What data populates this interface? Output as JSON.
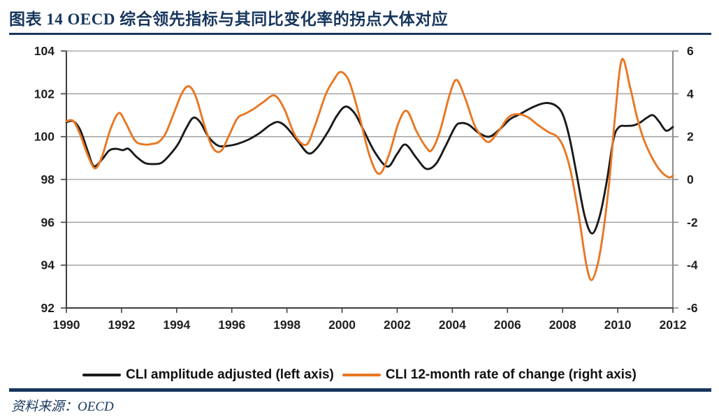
{
  "page": {
    "title": "图表 14  OECD 综合领先指标与其同比变化率的拐点大体对应",
    "source_label": "资料来源：",
    "source_value": "OECD"
  },
  "colors": {
    "navy": "#17365D",
    "black_series": "#1a1a1a",
    "orange_series": "#E87722",
    "gridline": "#9c9c9c",
    "axis": "#3f3f3f",
    "axis_right": "#8c8c8c",
    "tick_label": "#1f1f1f"
  },
  "legend": {
    "items": [
      {
        "label": "CLI amplitude adjusted (left axis)",
        "color": "#1a1a1a"
      },
      {
        "label": "CLI 12-month rate of change (right axis)",
        "color": "#E87722"
      }
    ]
  },
  "chart_data": {
    "type": "line",
    "title": "OECD 综合领先指标与其同比变化率的拐点大体对应",
    "x_axis": {
      "range": [
        1990,
        2012
      ],
      "ticks": [
        1990,
        1992,
        1994,
        1996,
        1998,
        2000,
        2002,
        2004,
        2006,
        2008,
        2010,
        2012
      ]
    },
    "left_axis": {
      "label": "CLI amplitude adjusted",
      "range": [
        92,
        104
      ],
      "ticks": [
        92,
        94,
        96,
        98,
        100,
        102,
        104
      ]
    },
    "right_axis": {
      "label": "CLI 12-month rate of change",
      "range": [
        -6,
        6
      ],
      "ticks": [
        -6,
        -4,
        -2,
        0,
        2,
        4,
        6
      ]
    },
    "grid": true,
    "legend_position": "bottom",
    "series": [
      {
        "name": "CLI amplitude adjusted (left axis)",
        "axis": "left",
        "color": "#1a1a1a",
        "points": [
          [
            1990.0,
            100.68
          ],
          [
            1990.25,
            100.72
          ],
          [
            1990.5,
            100.32
          ],
          [
            1990.78,
            99.3
          ],
          [
            1991.0,
            98.62
          ],
          [
            1991.3,
            98.95
          ],
          [
            1991.55,
            99.35
          ],
          [
            1991.8,
            99.43
          ],
          [
            1992.05,
            99.37
          ],
          [
            1992.25,
            99.43
          ],
          [
            1992.55,
            99.05
          ],
          [
            1992.85,
            98.77
          ],
          [
            1993.15,
            98.72
          ],
          [
            1993.45,
            98.78
          ],
          [
            1993.75,
            99.15
          ],
          [
            1994.05,
            99.65
          ],
          [
            1994.35,
            100.4
          ],
          [
            1994.6,
            100.88
          ],
          [
            1994.85,
            100.68
          ],
          [
            1995.15,
            100.0
          ],
          [
            1995.5,
            99.58
          ],
          [
            1995.85,
            99.57
          ],
          [
            1996.2,
            99.66
          ],
          [
            1996.6,
            99.86
          ],
          [
            1997.0,
            100.16
          ],
          [
            1997.4,
            100.55
          ],
          [
            1997.7,
            100.68
          ],
          [
            1998.0,
            100.42
          ],
          [
            1998.4,
            99.78
          ],
          [
            1998.78,
            99.22
          ],
          [
            1999.1,
            99.48
          ],
          [
            1999.5,
            100.25
          ],
          [
            1999.8,
            100.95
          ],
          [
            2000.12,
            101.4
          ],
          [
            2000.45,
            101.1
          ],
          [
            2000.8,
            100.25
          ],
          [
            2001.2,
            99.25
          ],
          [
            2001.65,
            98.6
          ],
          [
            2002.0,
            99.2
          ],
          [
            2002.3,
            99.63
          ],
          [
            2002.7,
            99.0
          ],
          [
            2003.05,
            98.5
          ],
          [
            2003.4,
            98.72
          ],
          [
            2003.75,
            99.55
          ],
          [
            2004.1,
            100.45
          ],
          [
            2004.3,
            100.63
          ],
          [
            2004.6,
            100.55
          ],
          [
            2004.95,
            100.18
          ],
          [
            2005.35,
            100.0
          ],
          [
            2005.75,
            100.38
          ],
          [
            2006.1,
            100.82
          ],
          [
            2006.45,
            101.05
          ],
          [
            2006.8,
            101.3
          ],
          [
            2007.15,
            101.5
          ],
          [
            2007.45,
            101.57
          ],
          [
            2007.75,
            101.45
          ],
          [
            2008.0,
            101.05
          ],
          [
            2008.25,
            99.95
          ],
          [
            2008.5,
            98.3
          ],
          [
            2008.8,
            96.3
          ],
          [
            2009.07,
            95.48
          ],
          [
            2009.35,
            96.3
          ],
          [
            2009.6,
            97.9
          ],
          [
            2009.85,
            99.9
          ],
          [
            2010.05,
            100.45
          ],
          [
            2010.3,
            100.5
          ],
          [
            2010.55,
            100.52
          ],
          [
            2010.8,
            100.65
          ],
          [
            2011.05,
            100.88
          ],
          [
            2011.28,
            101.0
          ],
          [
            2011.5,
            100.7
          ],
          [
            2011.75,
            100.28
          ],
          [
            2012.0,
            100.45
          ]
        ]
      },
      {
        "name": "CLI 12-month rate of change (right axis)",
        "axis": "right",
        "color": "#E87722",
        "points": [
          [
            1990.0,
            2.72
          ],
          [
            1990.25,
            2.73
          ],
          [
            1990.5,
            2.1
          ],
          [
            1990.8,
            1.05
          ],
          [
            1991.05,
            0.52
          ],
          [
            1991.3,
            1.1
          ],
          [
            1991.6,
            2.35
          ],
          [
            1991.9,
            3.1
          ],
          [
            1992.15,
            2.65
          ],
          [
            1992.5,
            1.8
          ],
          [
            1992.85,
            1.63
          ],
          [
            1993.1,
            1.66
          ],
          [
            1993.35,
            1.75
          ],
          [
            1993.6,
            2.15
          ],
          [
            1993.9,
            3.1
          ],
          [
            1994.2,
            4.05
          ],
          [
            1994.45,
            4.35
          ],
          [
            1994.7,
            3.85
          ],
          [
            1995.0,
            2.55
          ],
          [
            1995.3,
            1.5
          ],
          [
            1995.6,
            1.32
          ],
          [
            1995.9,
            2.05
          ],
          [
            1996.2,
            2.85
          ],
          [
            1996.5,
            3.08
          ],
          [
            1996.8,
            3.3
          ],
          [
            1997.15,
            3.62
          ],
          [
            1997.55,
            3.92
          ],
          [
            1997.9,
            3.3
          ],
          [
            1998.3,
            2.05
          ],
          [
            1998.7,
            1.62
          ],
          [
            1999.0,
            2.45
          ],
          [
            1999.4,
            3.95
          ],
          [
            1999.7,
            4.65
          ],
          [
            1999.95,
            5.02
          ],
          [
            2000.25,
            4.6
          ],
          [
            2000.6,
            3.1
          ],
          [
            2001.0,
            1.1
          ],
          [
            2001.35,
            0.26
          ],
          [
            2001.7,
            1.15
          ],
          [
            2002.05,
            2.65
          ],
          [
            2002.35,
            3.2
          ],
          [
            2002.7,
            2.25
          ],
          [
            2003.05,
            1.5
          ],
          [
            2003.25,
            1.37
          ],
          [
            2003.55,
            2.25
          ],
          [
            2003.9,
            3.95
          ],
          [
            2004.15,
            4.65
          ],
          [
            2004.45,
            3.85
          ],
          [
            2004.8,
            2.55
          ],
          [
            2005.1,
            1.95
          ],
          [
            2005.35,
            1.76
          ],
          [
            2005.7,
            2.3
          ],
          [
            2006.05,
            2.92
          ],
          [
            2006.4,
            3.05
          ],
          [
            2006.75,
            2.9
          ],
          [
            2007.1,
            2.55
          ],
          [
            2007.5,
            2.2
          ],
          [
            2007.8,
            2.0
          ],
          [
            2008.05,
            1.45
          ],
          [
            2008.3,
            0.35
          ],
          [
            2008.6,
            -1.8
          ],
          [
            2008.85,
            -3.9
          ],
          [
            2009.05,
            -4.7
          ],
          [
            2009.3,
            -3.8
          ],
          [
            2009.5,
            -2.2
          ],
          [
            2009.7,
            0.0
          ],
          [
            2009.9,
            2.9
          ],
          [
            2010.15,
            5.6
          ],
          [
            2010.45,
            4.3
          ],
          [
            2010.7,
            2.9
          ],
          [
            2010.95,
            1.85
          ],
          [
            2011.25,
            1.0
          ],
          [
            2011.55,
            0.4
          ],
          [
            2011.85,
            0.1
          ],
          [
            2012.0,
            0.17
          ]
        ]
      }
    ]
  }
}
